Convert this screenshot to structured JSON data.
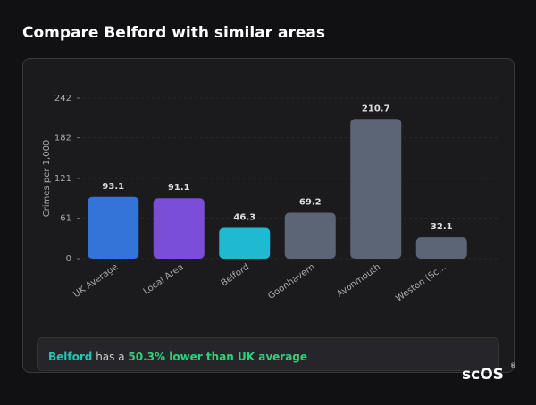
{
  "title": "Compare Belford with similar areas",
  "chart_data": {
    "type": "bar",
    "y_label": "Crimes per 1,000",
    "categories": [
      "UK Average",
      "Local Area",
      "Belford",
      "Goonhavern",
      "Avonmouth",
      "Weston (Sc…"
    ],
    "values": [
      93.1,
      91.1,
      46.3,
      69.2,
      210.7,
      32.1
    ],
    "colors": [
      "#3474d9",
      "#7a4ed8",
      "#20b9d2",
      "#5c6576",
      "#5c6576",
      "#5c6576"
    ],
    "ylim": [
      0,
      242
    ],
    "yticks": [
      0,
      61,
      121,
      182,
      242
    ],
    "grid": true
  },
  "summary": {
    "subject": "Belford",
    "text": "has a",
    "highlight": "50.3% lower than UK average"
  },
  "logo": {
    "text": "scOS",
    "mark": "®"
  }
}
